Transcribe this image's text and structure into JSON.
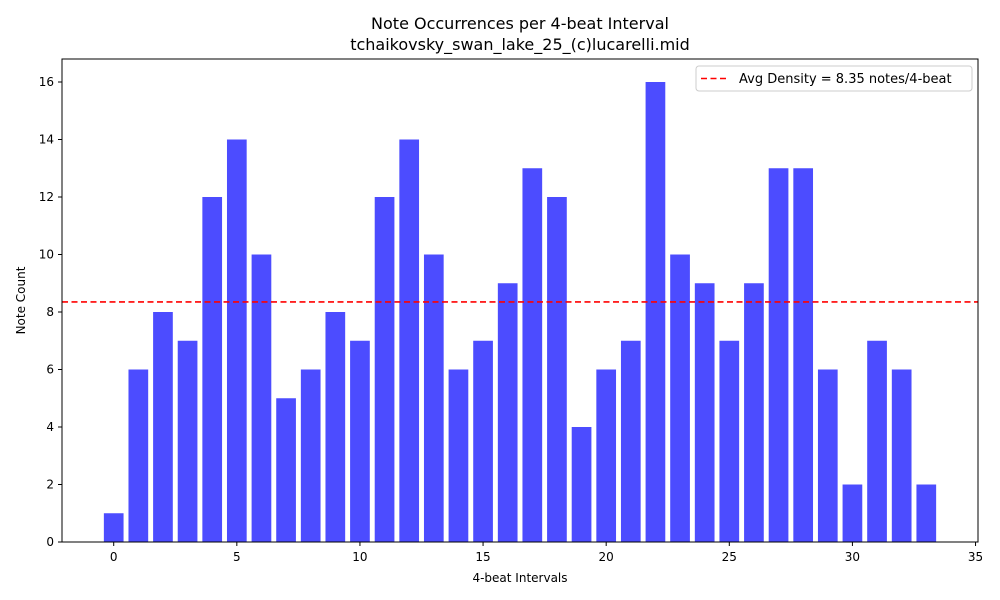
{
  "chart_data": {
    "type": "bar",
    "title": "Note Occurrences per 4-beat Interval",
    "subtitle": "tchaikovsky_swan_lake_25_(c)lucarelli.mid",
    "xlabel": "4-beat Intervals",
    "ylabel": "Note Count",
    "x": [
      0,
      1,
      2,
      3,
      4,
      5,
      6,
      7,
      8,
      9,
      10,
      11,
      12,
      13,
      14,
      15,
      16,
      17,
      18,
      19,
      20,
      21,
      22,
      23,
      24,
      25,
      26,
      27,
      28,
      29,
      30,
      31,
      32,
      33
    ],
    "values": [
      1,
      6,
      8,
      7,
      12,
      14,
      10,
      5,
      6,
      8,
      7,
      12,
      14,
      10,
      6,
      7,
      9,
      13,
      12,
      4,
      6,
      7,
      16,
      10,
      9,
      7,
      9,
      13,
      13,
      6,
      2,
      7,
      6,
      2
    ],
    "xlim": [
      -2.1,
      35.1
    ],
    "ylim": [
      0,
      16.8
    ],
    "xticks": [
      0,
      5,
      10,
      15,
      20,
      25,
      30,
      35
    ],
    "yticks": [
      0,
      2,
      4,
      6,
      8,
      10,
      12,
      14,
      16
    ],
    "bar_color": "#4c4cff",
    "average_line": {
      "value": 8.35,
      "color": "#ff0000",
      "style": "dashed",
      "label": "Avg Density = 8.35 notes/4-beat"
    },
    "legend_position": "top-right",
    "grid": false
  }
}
